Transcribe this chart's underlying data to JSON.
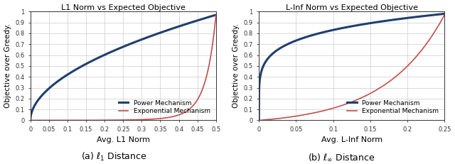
{
  "left_title": "L1 Norm vs Expected Objective",
  "right_title": "L-Inf Norm vs Expected Objective",
  "ylabel": "Objective over Greedy.",
  "left_xlabel": "Avg. L1 Norm",
  "right_xlabel": "Avg. L-Inf Norm",
  "power_color": "#1f3f6e",
  "exp_color": "#c0504d",
  "power_label": "Power Mechanism",
  "exp_label": "Exponential Mechanism",
  "left_xlim": [
    0,
    0.5
  ],
  "right_xlim": [
    0,
    0.25
  ],
  "ylim": [
    0,
    1.0
  ],
  "left_xticks": [
    0,
    0.05,
    0.1,
    0.15,
    0.2,
    0.25,
    0.3,
    0.35,
    0.4,
    0.45,
    0.5
  ],
  "right_xticks": [
    0,
    0.05,
    0.1,
    0.15,
    0.2,
    0.25
  ],
  "yticks": [
    0,
    0.1,
    0.2,
    0.3,
    0.4,
    0.5,
    0.6,
    0.7,
    0.8,
    0.9,
    1.0
  ]
}
